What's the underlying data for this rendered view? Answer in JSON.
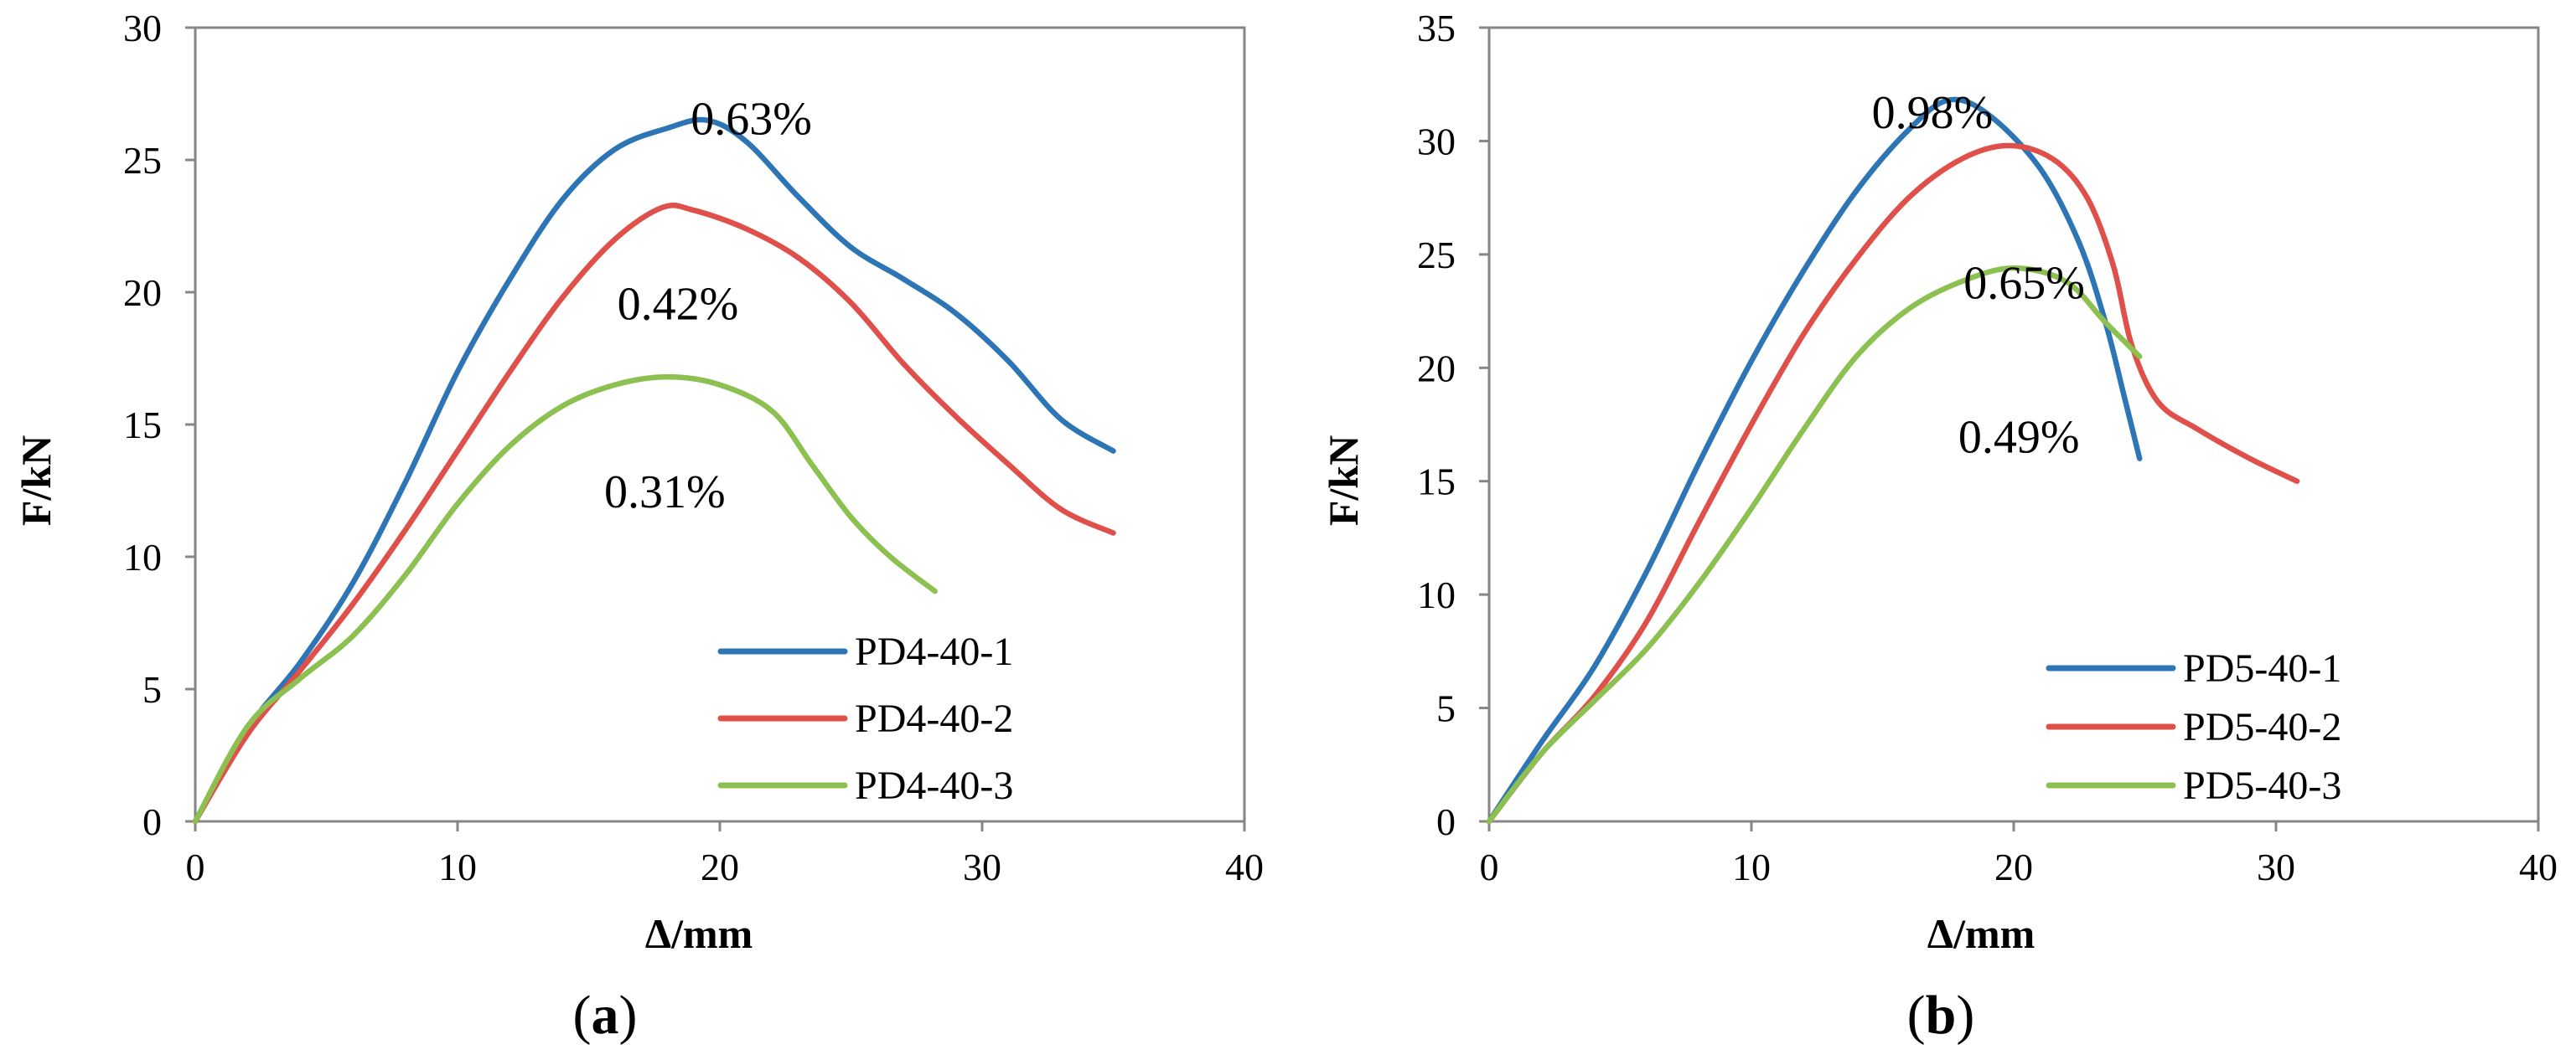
{
  "chart_data": [
    {
      "type": "line",
      "panel_label": "a",
      "xlabel": "Δ/mm",
      "ylabel": "F/kN",
      "xlim": [
        0,
        40
      ],
      "ylim": [
        0,
        30
      ],
      "xticks": [
        0,
        10,
        20,
        30,
        40
      ],
      "yticks": [
        0,
        5,
        10,
        15,
        20,
        25,
        30
      ],
      "legend_position": "bottom-right",
      "series": [
        {
          "name": "PD4-40-1",
          "color": "#2E75B6",
          "x": [
            0,
            2,
            4,
            6,
            8,
            10,
            12,
            14,
            16,
            18,
            19.5,
            21,
            23,
            25,
            27,
            29,
            31,
            33,
            35
          ],
          "y": [
            0,
            3.5,
            6.0,
            9.0,
            12.8,
            17.0,
            20.5,
            23.5,
            25.4,
            26.2,
            26.5,
            25.7,
            23.6,
            21.7,
            20.5,
            19.2,
            17.4,
            15.2,
            14.0
          ]
        },
        {
          "name": "PD4-40-2",
          "color": "#E0504A",
          "x": [
            0,
            2,
            4,
            6,
            8,
            10,
            12,
            14,
            16,
            17.8,
            19,
            21,
            23,
            25,
            27,
            29,
            31,
            33,
            35
          ],
          "y": [
            0,
            3.3,
            5.7,
            8.2,
            11.0,
            14.0,
            17.0,
            19.8,
            22.0,
            23.2,
            23.1,
            22.4,
            21.3,
            19.6,
            17.3,
            15.3,
            13.5,
            11.8,
            10.9
          ]
        },
        {
          "name": "PD4-40-3",
          "color": "#8CC152",
          "x": [
            0,
            2,
            4,
            6,
            8,
            10,
            12,
            14,
            16,
            18,
            20,
            22,
            23.5,
            25,
            26.5,
            28.2
          ],
          "y": [
            0,
            3.6,
            5.4,
            7.0,
            9.3,
            12.0,
            14.2,
            15.7,
            16.5,
            16.8,
            16.5,
            15.5,
            13.5,
            11.5,
            10.0,
            8.7
          ]
        }
      ],
      "annotations": [
        {
          "text": "0.63%",
          "x": 21.2,
          "y": 26.6
        },
        {
          "text": "0.42%",
          "x": 18.4,
          "y": 19.6
        },
        {
          "text": "0.31%",
          "x": 17.9,
          "y": 12.5
        }
      ]
    },
    {
      "type": "line",
      "panel_label": "b",
      "xlabel": "Δ/mm",
      "ylabel": "F/kN",
      "xlim": [
        0,
        40
      ],
      "ylim": [
        0,
        35
      ],
      "xticks": [
        0,
        10,
        20,
        30,
        40
      ],
      "yticks": [
        0,
        5,
        10,
        15,
        20,
        25,
        30,
        35
      ],
      "legend_position": "bottom-right",
      "series": [
        {
          "name": "PD5-40-1",
          "color": "#2E75B6",
          "x": [
            0,
            2,
            4,
            6,
            8,
            10,
            12,
            14,
            16,
            17.5,
            19,
            21,
            22.5,
            23.5,
            24.2,
            24.8
          ],
          "y": [
            0,
            3.5,
            6.8,
            11.0,
            15.8,
            20.3,
            24.3,
            27.8,
            30.5,
            31.8,
            31.2,
            28.8,
            25.5,
            22.0,
            18.8,
            16.0
          ]
        },
        {
          "name": "PD5-40-2",
          "color": "#E0504A",
          "x": [
            0,
            2,
            4,
            6,
            8,
            10,
            12,
            14,
            16,
            18,
            19.8,
            21.5,
            22.8,
            23.8,
            24.5,
            25.5,
            27,
            29,
            30.8
          ],
          "y": [
            0,
            3.0,
            5.5,
            8.8,
            13.2,
            17.5,
            21.5,
            24.8,
            27.5,
            29.2,
            29.8,
            29.2,
            27.5,
            24.5,
            21.0,
            18.5,
            17.3,
            16.0,
            15.0
          ]
        },
        {
          "name": "PD5-40-3",
          "color": "#8CC152",
          "x": [
            0,
            2,
            4,
            6,
            8,
            10,
            12,
            14,
            16,
            18,
            20,
            22,
            23.5,
            24.8
          ],
          "y": [
            0,
            3.0,
            5.3,
            7.6,
            10.5,
            13.8,
            17.3,
            20.5,
            22.6,
            23.8,
            24.4,
            23.8,
            22.0,
            20.5
          ]
        }
      ],
      "annotations": [
        {
          "text": "0.98%",
          "x": 16.9,
          "y": 31.3
        },
        {
          "text": "0.65%",
          "x": 20.4,
          "y": 23.8
        },
        {
          "text": "0.49%",
          "x": 20.2,
          "y": 17.0
        }
      ]
    }
  ]
}
